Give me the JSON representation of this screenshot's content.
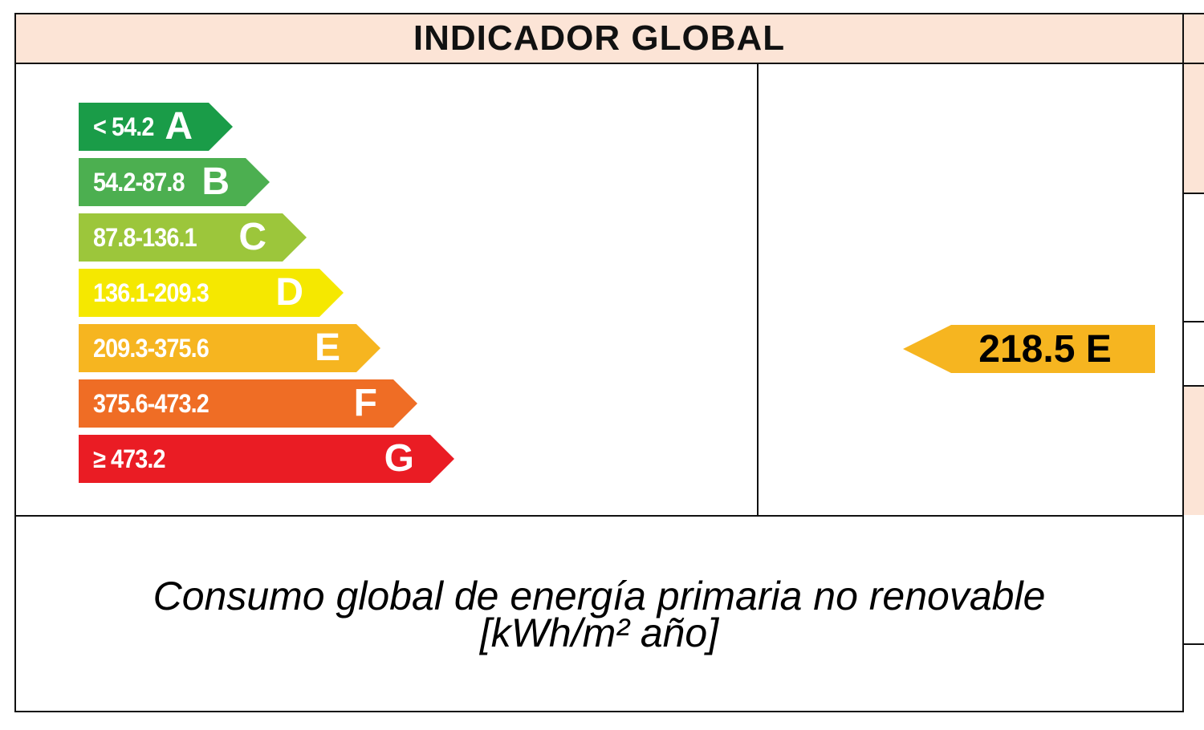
{
  "header": {
    "title": "INDICADOR GLOBAL"
  },
  "scale": {
    "bands": [
      {
        "letter": "A",
        "range": "< 54.2",
        "color": "#1a9c48"
      },
      {
        "letter": "B",
        "range": "54.2-87.8",
        "color": "#4caf50"
      },
      {
        "letter": "C",
        "range": "87.8-136.1",
        "color": "#9cc63b"
      },
      {
        "letter": "D",
        "range": "136.1-209.3",
        "color": "#f5e800"
      },
      {
        "letter": "E",
        "range": "209.3-375.6",
        "color": "#f6b520"
      },
      {
        "letter": "F",
        "range": "375.6-473.2",
        "color": "#ef6d25"
      },
      {
        "letter": "G",
        "range": "≥ 473.2",
        "color": "#ea1c24"
      }
    ]
  },
  "result": {
    "label": "218.5 E",
    "value": 218.5,
    "class": "E",
    "color": "#f6b520"
  },
  "caption": {
    "line1": "Consumo global de energía primaria no renovable",
    "line2": "[kWh/m² año]"
  },
  "colors": {
    "header_bg": "#fce4d6",
    "border": "#111111"
  }
}
